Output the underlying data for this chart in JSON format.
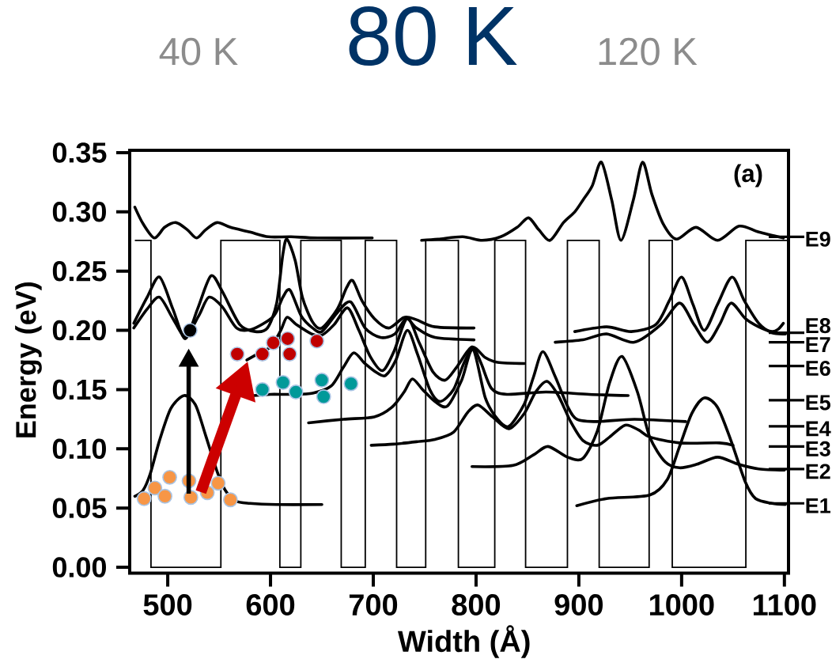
{
  "chart_data": {
    "type": "line",
    "title": "80 K",
    "annotations": [
      "40 K",
      "120 K",
      "(a)"
    ],
    "xlabel": "Width (Å)",
    "ylabel": "Energy (eV)",
    "xlim": [
      463,
      1104
    ],
    "ylim": [
      -0.005,
      0.352
    ],
    "xticks": [
      500,
      600,
      700,
      800,
      900,
      1000,
      1100
    ],
    "yticks": [
      {
        "value": 0,
        "label": "0.00"
      },
      {
        "value": 0.05,
        "label": "0.05"
      },
      {
        "value": 0.1,
        "label": "0.10"
      },
      {
        "value": 0.15,
        "label": "0.15"
      },
      {
        "value": 0.2,
        "label": "0.20"
      },
      {
        "value": 0.25,
        "label": "0.25"
      },
      {
        "value": 0.3,
        "label": "0.30"
      },
      {
        "value": 0.35,
        "label": "0.35"
      }
    ],
    "ref_lines": [
      {
        "axis": "y",
        "value": 0.054,
        "label": "E1"
      },
      {
        "axis": "y",
        "value": 0.083,
        "label": "E2"
      },
      {
        "axis": "y",
        "value": 0.102,
        "label": "E3"
      },
      {
        "axis": "y",
        "value": 0.119,
        "label": "E4"
      },
      {
        "axis": "y",
        "value": 0.141,
        "label": "E5"
      },
      {
        "axis": "y",
        "value": 0.17,
        "label": "E6"
      },
      {
        "axis": "y",
        "value": 0.19,
        "label": "E7"
      },
      {
        "axis": "y",
        "value": 0.198,
        "label": "E8"
      },
      {
        "axis": "y",
        "value": 0.279,
        "label": "E9"
      }
    ],
    "series": [
      {
        "type": "step",
        "color": "#000000",
        "x": [
          468,
          483.7,
          551.7,
          609.1,
          629.5,
          668.8,
          692.2,
          722.7,
          751,
          782.8,
          818.2,
          848.2,
          888.9,
          919.8,
          968.4,
          990.9,
          1062.5,
          1103
        ],
        "values": [
          0.276,
          0,
          0.276,
          0,
          0.276,
          0,
          0.276,
          0,
          0.276,
          0,
          0.276,
          0,
          0.276,
          0,
          0.276,
          0,
          0.276,
          0.276
        ]
      },
      {
        "color": "#000000",
        "x": [
          468,
          476,
          487,
          497,
          508,
          519,
          528,
          537,
          548,
          561,
          580,
          598,
          620,
          646,
          699
        ],
        "values": [
          0.304,
          0.29,
          0.278,
          0.287,
          0.291,
          0.285,
          0.278,
          0.285,
          0.291,
          0.287,
          0.283,
          0.279,
          0.279,
          0.278,
          0.278
        ]
      },
      {
        "color": "#000000",
        "x": [
          747,
          763,
          787,
          806,
          824,
          840,
          851,
          861,
          872,
          885,
          896,
          904,
          913,
          922,
          932,
          941,
          953,
          962,
          971,
          982,
          995,
          1014,
          1035,
          1056,
          1075,
          1099
        ],
        "values": [
          0.276,
          0.277,
          0.279,
          0.276,
          0.279,
          0.287,
          0.295,
          0.285,
          0.276,
          0.291,
          0.3,
          0.31,
          0.322,
          0.342,
          0.31,
          0.276,
          0.31,
          0.342,
          0.315,
          0.29,
          0.277,
          0.287,
          0.276,
          0.288,
          0.283,
          0.278
        ]
      },
      {
        "color": "#000000",
        "x": [
          467,
          480,
          492,
          505,
          517,
          529,
          542,
          553,
          570,
          585,
          597,
          606,
          612,
          616,
          624,
          631,
          641,
          650,
          665,
          674,
          680,
          689,
          701,
          715,
          730,
          742,
          760,
          798
        ],
        "values": [
          0.206,
          0.228,
          0.245,
          0.218,
          0.193,
          0.218,
          0.246,
          0.233,
          0.205,
          0.199,
          0.202,
          0.223,
          0.264,
          0.277,
          0.259,
          0.228,
          0.207,
          0.202,
          0.218,
          0.236,
          0.242,
          0.225,
          0.21,
          0.202,
          0.211,
          0.209,
          0.203,
          0.202
        ]
      },
      {
        "color": "#000000",
        "x": [
          467,
          480,
          492,
          505,
          517,
          530,
          540,
          553,
          567,
          582,
          603,
          612,
          619,
          630,
          641,
          650,
          665,
          678,
          692,
          707,
          721,
          732,
          742,
          760,
          798
        ],
        "values": [
          0.202,
          0.218,
          0.228,
          0.21,
          0.195,
          0.212,
          0.228,
          0.22,
          0.202,
          0.201,
          0.212,
          0.228,
          0.234,
          0.212,
          0.202,
          0.199,
          0.215,
          0.224,
          0.202,
          0.194,
          0.197,
          0.21,
          0.202,
          0.194,
          0.192
        ]
      },
      {
        "color": "#000000",
        "x": [
          577,
          585,
          600,
          610,
          616,
          625,
          640,
          650,
          662,
          675,
          686,
          697,
          709,
          720,
          733,
          745,
          758,
          770,
          782,
          796,
          809,
          821,
          847
        ],
        "values": [
          0.175,
          0.179,
          0.186,
          0.2,
          0.211,
          0.205,
          0.197,
          0.196,
          0.205,
          0.219,
          0.2,
          0.178,
          0.166,
          0.182,
          0.21,
          0.189,
          0.165,
          0.158,
          0.17,
          0.186,
          0.177,
          0.173,
          0.172
        ]
      },
      {
        "color": "#000000",
        "x": [
          584,
          600,
          620,
          641,
          659,
          671,
          681,
          692,
          704,
          712,
          722,
          733,
          743,
          755,
          765,
          778,
          788,
          797,
          805,
          815,
          830,
          868,
          910,
          948
        ],
        "values": [
          0.145,
          0.146,
          0.146,
          0.147,
          0.153,
          0.169,
          0.181,
          0.172,
          0.164,
          0.162,
          0.175,
          0.2,
          0.18,
          0.15,
          0.14,
          0.15,
          0.172,
          0.185,
          0.172,
          0.151,
          0.146,
          0.148,
          0.146,
          0.145
        ]
      },
      {
        "color": "#000000",
        "x": [
          637,
          671,
          701,
          718,
          730,
          738,
          748,
          760,
          772,
          786,
          797,
          809,
          821,
          832,
          847,
          856,
          865,
          877,
          889,
          898,
          918,
          954,
          1004
        ],
        "values": [
          0.122,
          0.125,
          0.127,
          0.135,
          0.148,
          0.159,
          0.15,
          0.14,
          0.136,
          0.158,
          0.184,
          0.143,
          0.125,
          0.119,
          0.138,
          0.161,
          0.182,
          0.161,
          0.136,
          0.125,
          0.123,
          0.125,
          0.123
        ]
      },
      {
        "color": "#000000",
        "x": [
          698,
          720,
          742,
          760,
          778,
          792,
          802,
          816,
          832,
          847,
          858,
          869,
          880,
          892,
          904,
          918,
          930,
          945,
          958,
          969,
          998,
          1037,
          1050
        ],
        "values": [
          0.103,
          0.104,
          0.106,
          0.108,
          0.114,
          0.131,
          0.137,
          0.127,
          0.117,
          0.13,
          0.148,
          0.157,
          0.145,
          0.123,
          0.107,
          0.103,
          0.11,
          0.12,
          0.116,
          0.11,
          0.105,
          0.105,
          0.103
        ]
      },
      {
        "color": "#000000",
        "x": [
          796,
          836,
          856,
          870,
          889,
          904,
          918,
          930,
          942,
          957,
          969,
          984,
          998,
          1015,
          1035,
          1055,
          1075,
          1100
        ],
        "values": [
          0.085,
          0.086,
          0.095,
          0.102,
          0.093,
          0.092,
          0.115,
          0.156,
          0.178,
          0.148,
          0.11,
          0.089,
          0.084,
          0.087,
          0.093,
          0.087,
          0.083,
          0.082
        ]
      },
      {
        "color": "#000000",
        "x": [
          468,
          476,
          483,
          492,
          503,
          516,
          527,
          537,
          548,
          556,
          566,
          580,
          606,
          650
        ],
        "values": [
          0.06,
          0.065,
          0.079,
          0.107,
          0.134,
          0.145,
          0.137,
          0.111,
          0.081,
          0.065,
          0.056,
          0.054,
          0.053,
          0.053
        ]
      },
      {
        "color": "#000000",
        "x": [
          898,
          927,
          969,
          986,
          998,
          1010,
          1022,
          1035,
          1048,
          1062,
          1072,
          1088,
          1101
        ],
        "values": [
          0.052,
          0.058,
          0.061,
          0.074,
          0.102,
          0.13,
          0.143,
          0.135,
          0.107,
          0.072,
          0.058,
          0.054,
          0.053
        ]
      },
      {
        "color": "#000000",
        "x": [
          896,
          927,
          951,
          975,
          988,
          1000,
          1011,
          1022,
          1035,
          1049,
          1061,
          1075,
          1088,
          1101
        ],
        "values": [
          0.199,
          0.203,
          0.199,
          0.205,
          0.225,
          0.245,
          0.222,
          0.2,
          0.222,
          0.245,
          0.225,
          0.206,
          0.198,
          0.197
        ]
      },
      {
        "color": "#000000",
        "x": [
          877,
          904,
          927,
          954,
          980,
          998,
          1012,
          1025,
          1037,
          1048,
          1062,
          1075,
          1088,
          1094,
          1099
        ],
        "values": [
          0.19,
          0.192,
          0.197,
          0.19,
          0.205,
          0.223,
          0.205,
          0.19,
          0.205,
          0.223,
          0.21,
          0.203,
          0.199,
          0.201,
          0.206
        ]
      },
      {
        "type": "scatter",
        "marker": "circle",
        "color": "#f79646",
        "x": [
          477,
          487.5,
          497.3,
          501.9,
          520.7,
          522.5,
          538.5,
          549.1,
          561
        ],
        "values": [
          0.058,
          0.067,
          0.06,
          0.076,
          0.073,
          0.059,
          0.063,
          0.071,
          0.057
        ]
      },
      {
        "type": "scatter",
        "marker": "circle",
        "color": "#000000",
        "x": [
          521.8
        ],
        "values": [
          0.2
        ]
      },
      {
        "type": "scatter",
        "marker": "circle",
        "color": "#c00000",
        "x": [
          567.6,
          592.1,
          602.7,
          616.7,
          618.6,
          645.1
        ],
        "values": [
          0.18,
          0.18,
          0.1895,
          0.193,
          0.18,
          0.191
        ]
      },
      {
        "type": "scatter",
        "marker": "circle",
        "color": "#009999",
        "x": [
          592.1,
          612.2,
          624.7,
          649.9,
          651.7,
          678.3
        ],
        "values": [
          0.15,
          0.156,
          0.148,
          0.158,
          0.144,
          0.155
        ]
      }
    ]
  }
}
